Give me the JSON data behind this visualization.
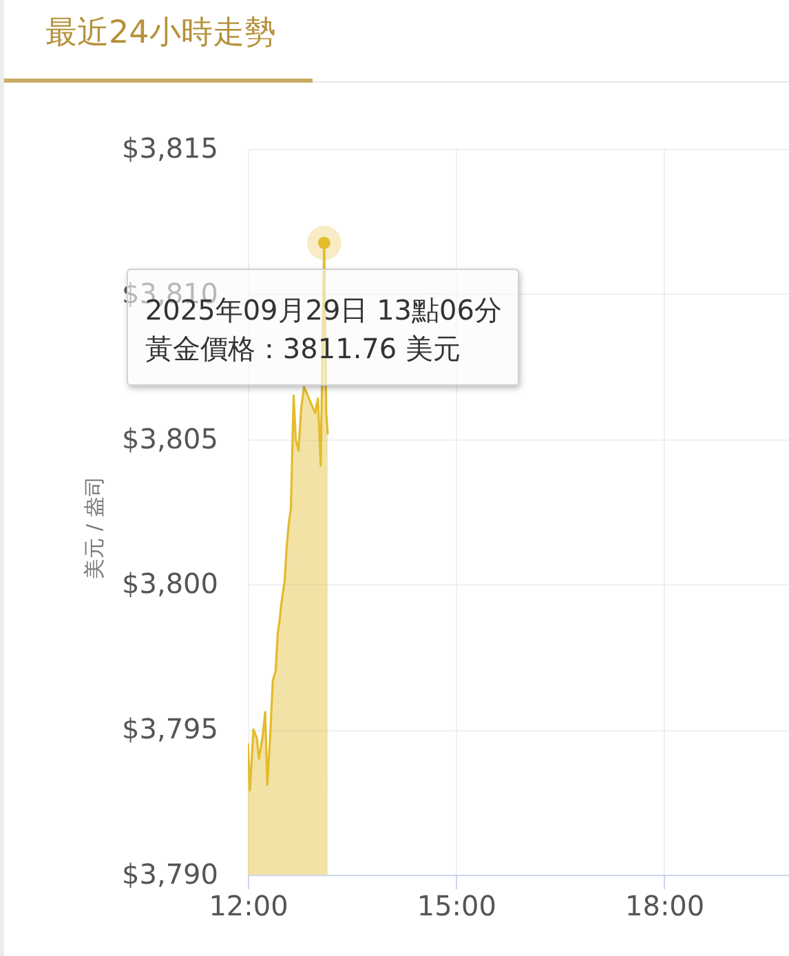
{
  "chart_data": {
    "type": "area",
    "title": "最近24小時走勢",
    "ylabel": "美元 / 盎司",
    "x": [
      12.0,
      12.03,
      12.08,
      12.13,
      12.16,
      12.21,
      12.25,
      12.28,
      12.32,
      12.36,
      12.4,
      12.43,
      12.46,
      12.48,
      12.53,
      12.56,
      12.59,
      12.62,
      12.66,
      12.69,
      12.73,
      12.77,
      12.81,
      12.97,
      13.01,
      13.05,
      13.1,
      13.13,
      13.15
    ],
    "values": [
      3794.5,
      3792.9,
      3795.0,
      3794.7,
      3794.0,
      3794.7,
      3795.6,
      3793.1,
      3794.7,
      3796.7,
      3797.0,
      3798.3,
      3798.8,
      3799.3,
      3800.1,
      3801.3,
      3802.1,
      3802.6,
      3806.5,
      3805.0,
      3804.6,
      3806.1,
      3806.8,
      3805.9,
      3806.4,
      3804.1,
      3811.76,
      3805.9,
      3805.2
    ],
    "color": "#e3bb2c",
    "xlim": [
      12,
      19.8
    ],
    "xticks": [
      {
        "value": 12,
        "label": "12:00"
      },
      {
        "value": 15,
        "label": "15:00"
      },
      {
        "value": 18,
        "label": "18:00"
      }
    ],
    "ylim": [
      3790,
      3815
    ],
    "yticks": [
      {
        "value": 3790,
        "label": "$3,790"
      },
      {
        "value": 3795,
        "label": "$3,795"
      },
      {
        "value": 3800,
        "label": "$3,800"
      },
      {
        "value": 3805,
        "label": "$3,805"
      },
      {
        "value": 3810,
        "label": "$3,810"
      },
      {
        "value": 3815,
        "label": "$3,815"
      }
    ],
    "grid": true,
    "annotations": [
      {
        "text": "2025年09月29日 13點06分",
        "x": 13.1,
        "y": 3811.76
      },
      "黃金價格：3811.76 美元"
    ]
  }
}
